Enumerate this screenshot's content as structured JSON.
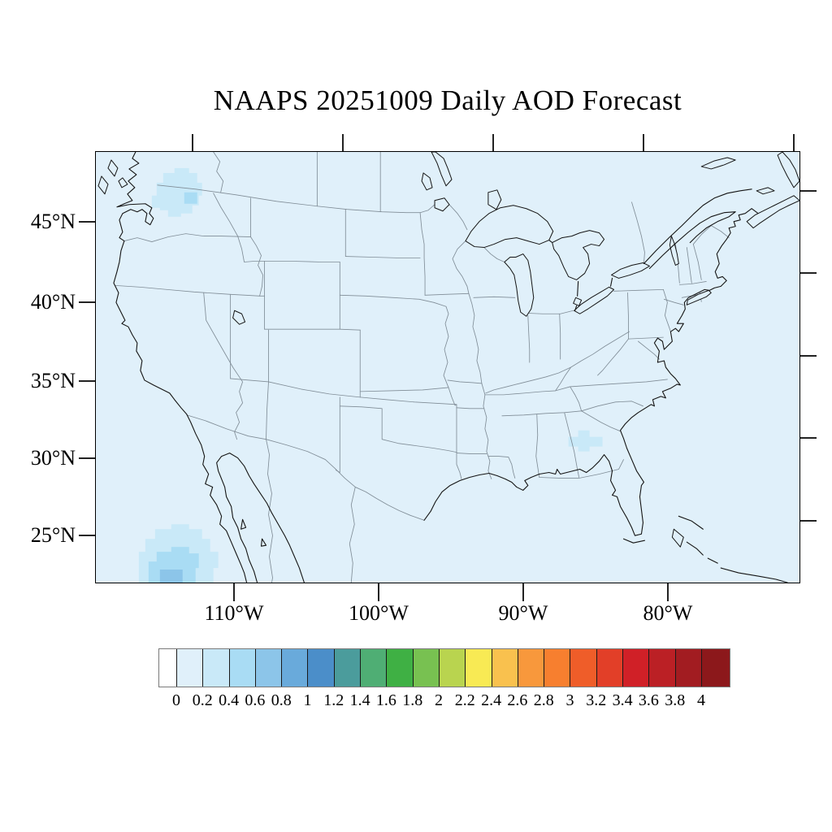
{
  "title": "NAAPS 20251009 Daily AOD Forecast",
  "map": {
    "y_axis": {
      "labels": [
        "45°N",
        "40°N",
        "35°N",
        "30°N",
        "25°N"
      ]
    },
    "x_axis": {
      "labels": [
        "110°W",
        "100°W",
        "90°W",
        "80°W"
      ]
    },
    "background_aod_range": "0-0.2"
  },
  "colorbar": {
    "tick_labels": [
      "0",
      "0.2",
      "0.4",
      "0.6",
      "0.8",
      "1",
      "1.2",
      "1.4",
      "1.6",
      "1.8",
      "2",
      "2.2",
      "2.4",
      "2.6",
      "2.8",
      "3",
      "3.2",
      "3.4",
      "3.6",
      "3.8",
      "4"
    ],
    "colors": [
      "#FFFFFF",
      "#E0F0FA",
      "#C9E9F8",
      "#A9DCF4",
      "#8CC5E9",
      "#69AADB",
      "#4B8EC9",
      "#4B9C9C",
      "#4FAE74",
      "#3FB044",
      "#78C151",
      "#B9D44F",
      "#F8EA54",
      "#F9C14E",
      "#F8983C",
      "#F77F2F",
      "#EF5D29",
      "#E23F28",
      "#D02027",
      "#BB2025",
      "#A21C21",
      "#8C181B"
    ]
  },
  "aod_features": [
    {
      "region": "Washington state / Pacific Northwest",
      "aod_range": "0.2-0.6"
    },
    {
      "region": "Western Georgia",
      "aod_range": "0.2-0.4"
    },
    {
      "region": "Pacific Ocean west of Baja California",
      "aod_range": "0.2-0.6"
    }
  ]
}
